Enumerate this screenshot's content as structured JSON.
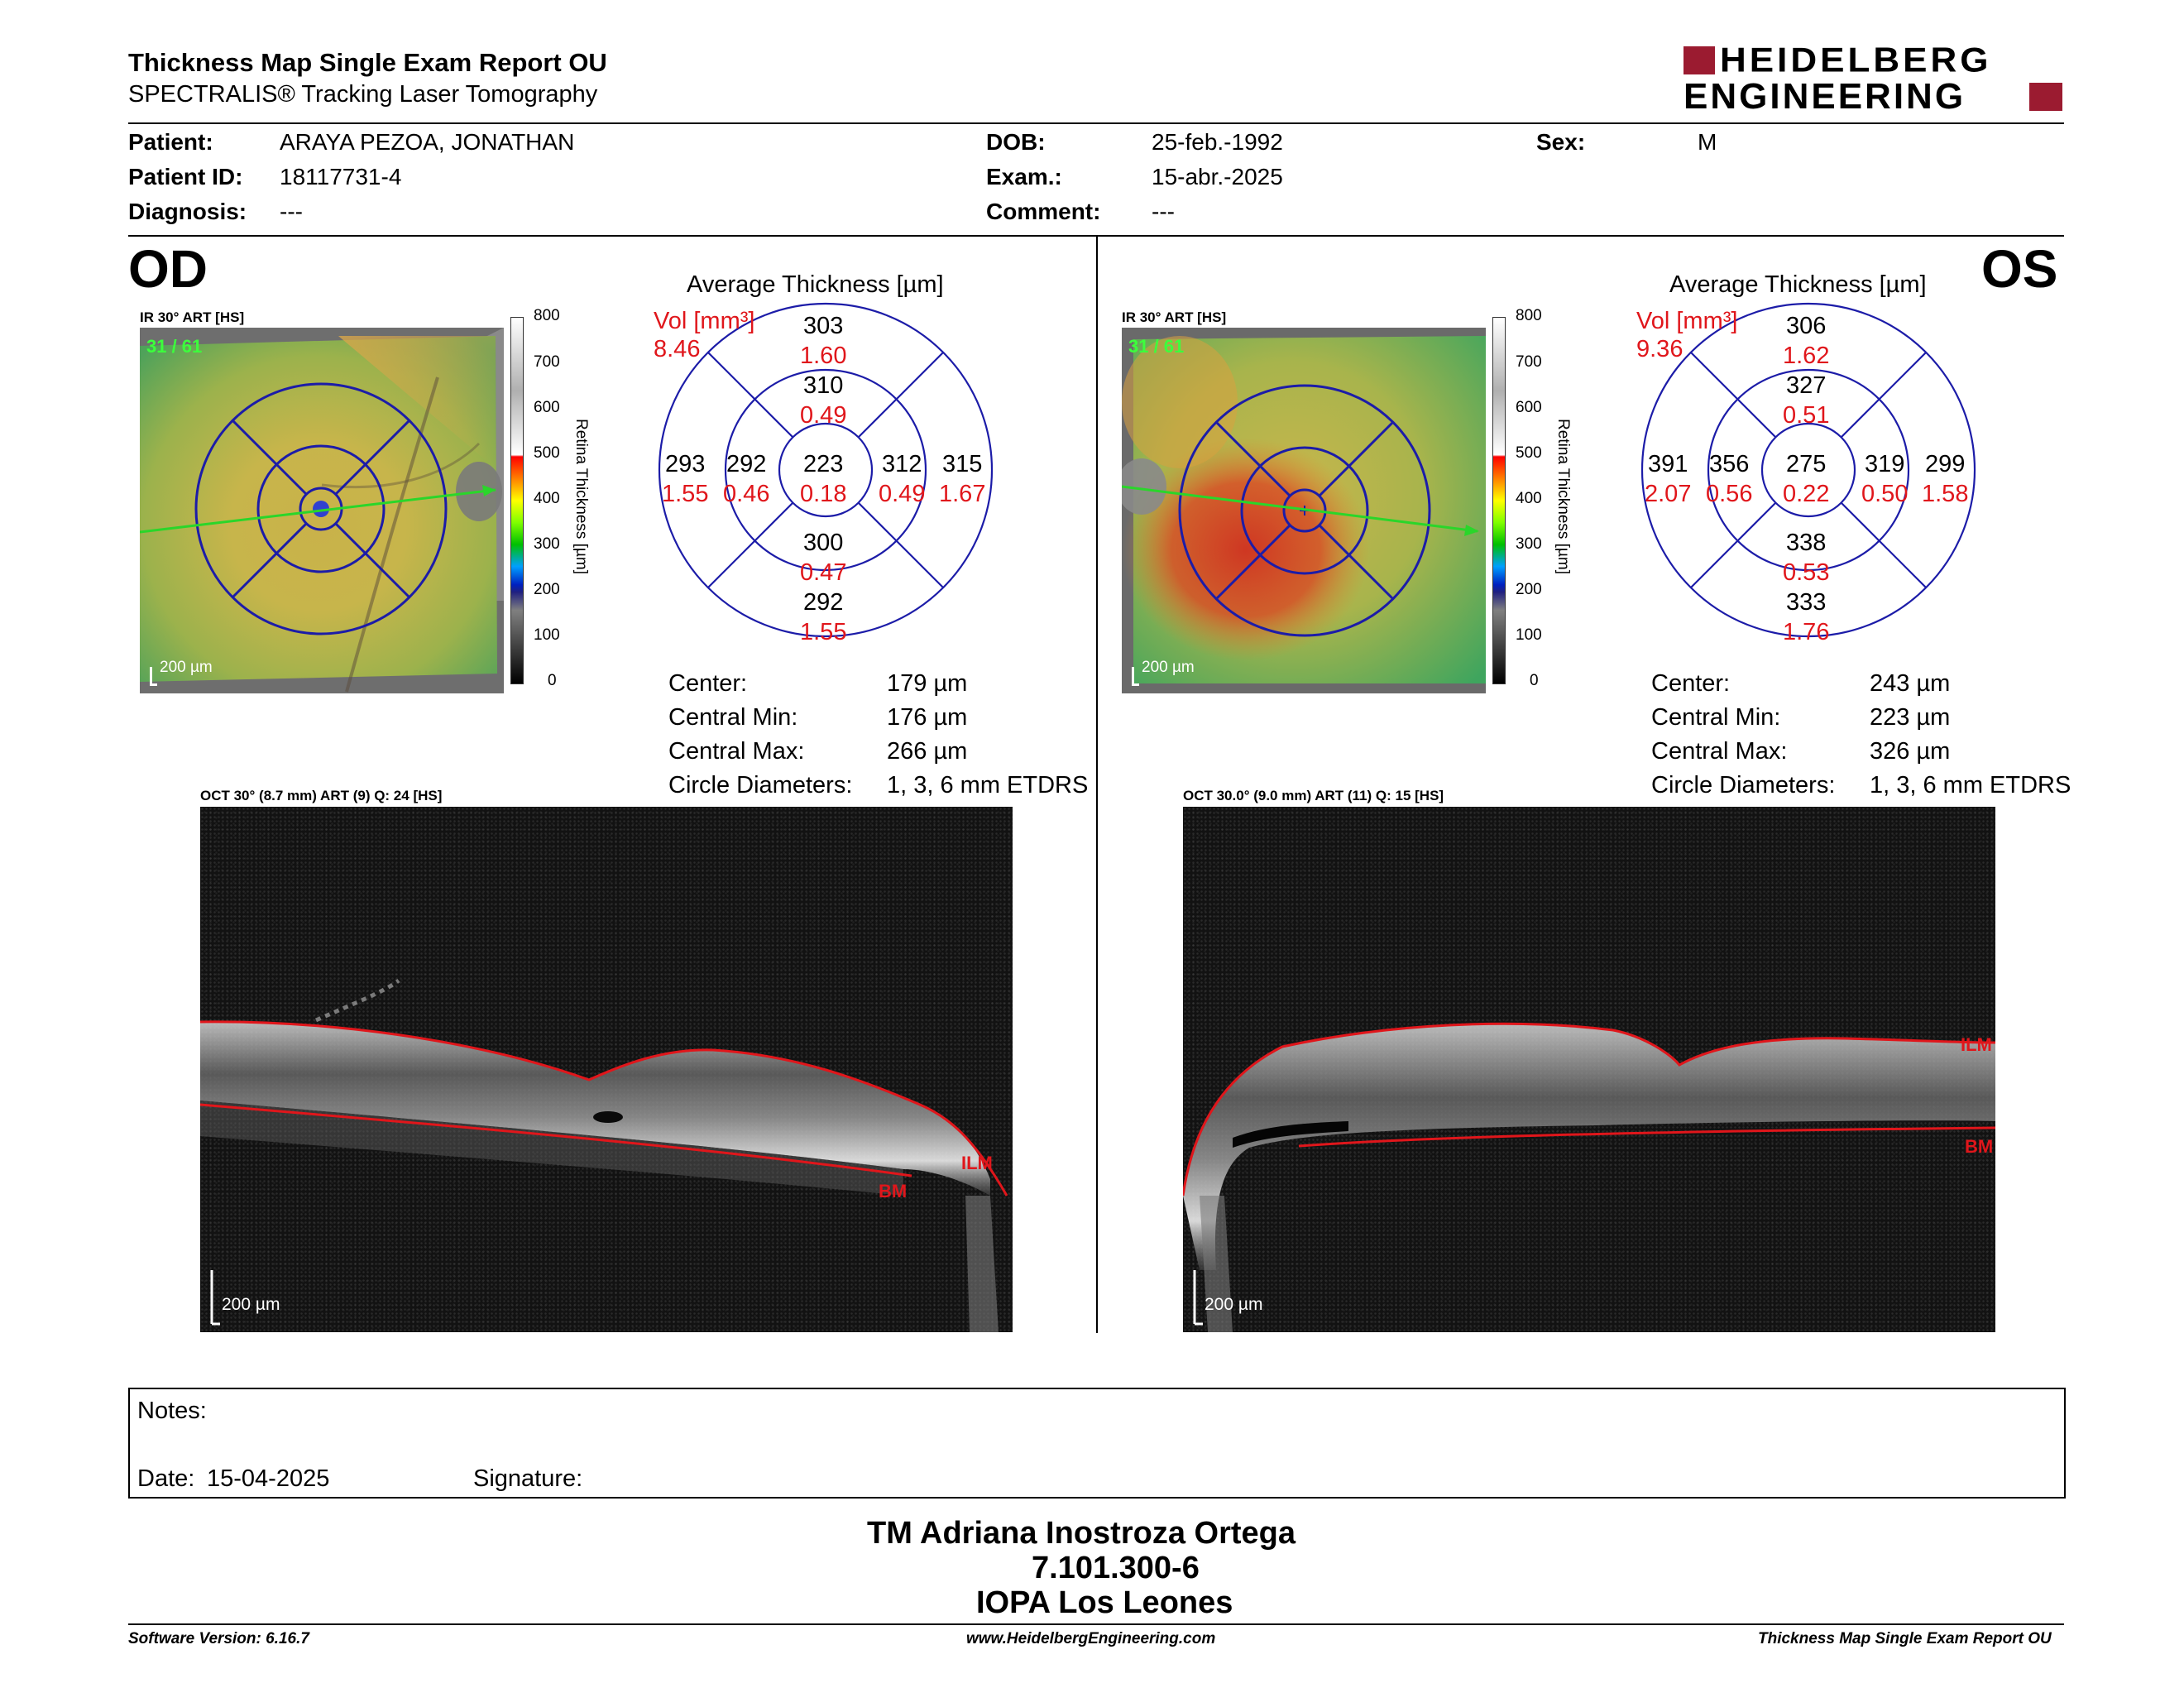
{
  "header": {
    "title": "Thickness Map Single Exam Report OU",
    "subtitle": "SPECTRALIS® Tracking Laser Tomography",
    "logo_line1": "HEIDELBERG",
    "logo_line2": "ENGINEERING"
  },
  "patient": {
    "patient_label": "Patient:",
    "patient_value": "ARAYA PEZOA, JONATHAN",
    "id_label": "Patient ID:",
    "id_value": "18117731-4",
    "diagnosis_label": "Diagnosis:",
    "diagnosis_value": "---",
    "dob_label": "DOB:",
    "dob_value": "25-feb.-1992",
    "exam_label": "Exam.:",
    "exam_value": "15-abr.-2025",
    "comment_label": "Comment:",
    "comment_value": "---",
    "sex_label": "Sex:",
    "sex_value": "M"
  },
  "colorbar": {
    "ticks": [
      "800",
      "700",
      "600",
      "500",
      "400",
      "300",
      "200",
      "100",
      "0"
    ],
    "title": "Retina Thickness [µm]"
  },
  "od": {
    "eye": "OD",
    "ir_caption": "IR 30° ART [HS]",
    "frame": "31 / 61",
    "scale": "200 µm",
    "avg_title": "Average Thickness [µm]",
    "vol_label": "Vol [mm³]",
    "vol_value": "8.46",
    "grid": {
      "outer_sup_t": "303",
      "outer_sup_v": "1.60",
      "inner_sup_t": "310",
      "inner_sup_v": "0.49",
      "outer_left_t": "293",
      "outer_left_v": "1.55",
      "inner_left_t": "292",
      "inner_left_v": "0.46",
      "center_t": "223",
      "center_v": "0.18",
      "inner_right_t": "312",
      "inner_right_v": "0.49",
      "outer_right_t": "315",
      "outer_right_v": "1.67",
      "inner_inf_t": "300",
      "inner_inf_v": "0.47",
      "outer_inf_t": "292",
      "outer_inf_v": "1.55"
    },
    "stats": {
      "center_label": "Center:",
      "center_value": "179 µm",
      "min_label": "Central Min:",
      "min_value": "176 µm",
      "max_label": "Central Max:",
      "max_value": "266 µm",
      "diam_label": "Circle Diameters:",
      "diam_value": "1, 3, 6 mm ETDRS"
    },
    "oct_caption": "OCT 30° (8.7 mm) ART (9) Q: 24 [HS]",
    "oct_scale": "200 µm",
    "label_ilm": "ILM",
    "label_bm": "BM"
  },
  "os": {
    "eye": "OS",
    "ir_caption": "IR 30° ART [HS]",
    "frame": "31 / 61",
    "scale": "200 µm",
    "avg_title": "Average Thickness [µm]",
    "vol_label": "Vol [mm³]",
    "vol_value": "9.36",
    "grid": {
      "outer_sup_t": "306",
      "outer_sup_v": "1.62",
      "inner_sup_t": "327",
      "inner_sup_v": "0.51",
      "outer_left_t": "391",
      "outer_left_v": "2.07",
      "inner_left_t": "356",
      "inner_left_v": "0.56",
      "center_t": "275",
      "center_v": "0.22",
      "inner_right_t": "319",
      "inner_right_v": "0.50",
      "outer_right_t": "299",
      "outer_right_v": "1.58",
      "inner_inf_t": "338",
      "inner_inf_v": "0.53",
      "outer_inf_t": "333",
      "outer_inf_v": "1.76"
    },
    "stats": {
      "center_label": "Center:",
      "center_value": "243 µm",
      "min_label": "Central Min:",
      "min_value": "223 µm",
      "max_label": "Central Max:",
      "max_value": "326 µm",
      "diam_label": "Circle Diameters:",
      "diam_value": "1, 3, 6 mm ETDRS"
    },
    "oct_caption": "OCT 30.0° (9.0 mm) ART (11) Q: 15 [HS]",
    "oct_scale": "200 µm",
    "label_ilm": "ILM",
    "label_bm": "BM"
  },
  "notes": {
    "notes_label": "Notes:",
    "date_label": "Date:",
    "date_value": "15-04-2025",
    "signature_label": "Signature:"
  },
  "signer": {
    "name": "TM Adriana Inostroza Ortega",
    "rut": "7.101.300-6",
    "clinic": "IOPA Los Leones"
  },
  "footer": {
    "software": "Software Version: 6.16.7",
    "url": "www.HeidelbergEngineering.com",
    "report": "Thickness Map Single Exam Report OU"
  },
  "colors": {
    "red": "#e0161b",
    "grid_blue": "#1c1ca8",
    "logo_red": "#9b1b30"
  }
}
